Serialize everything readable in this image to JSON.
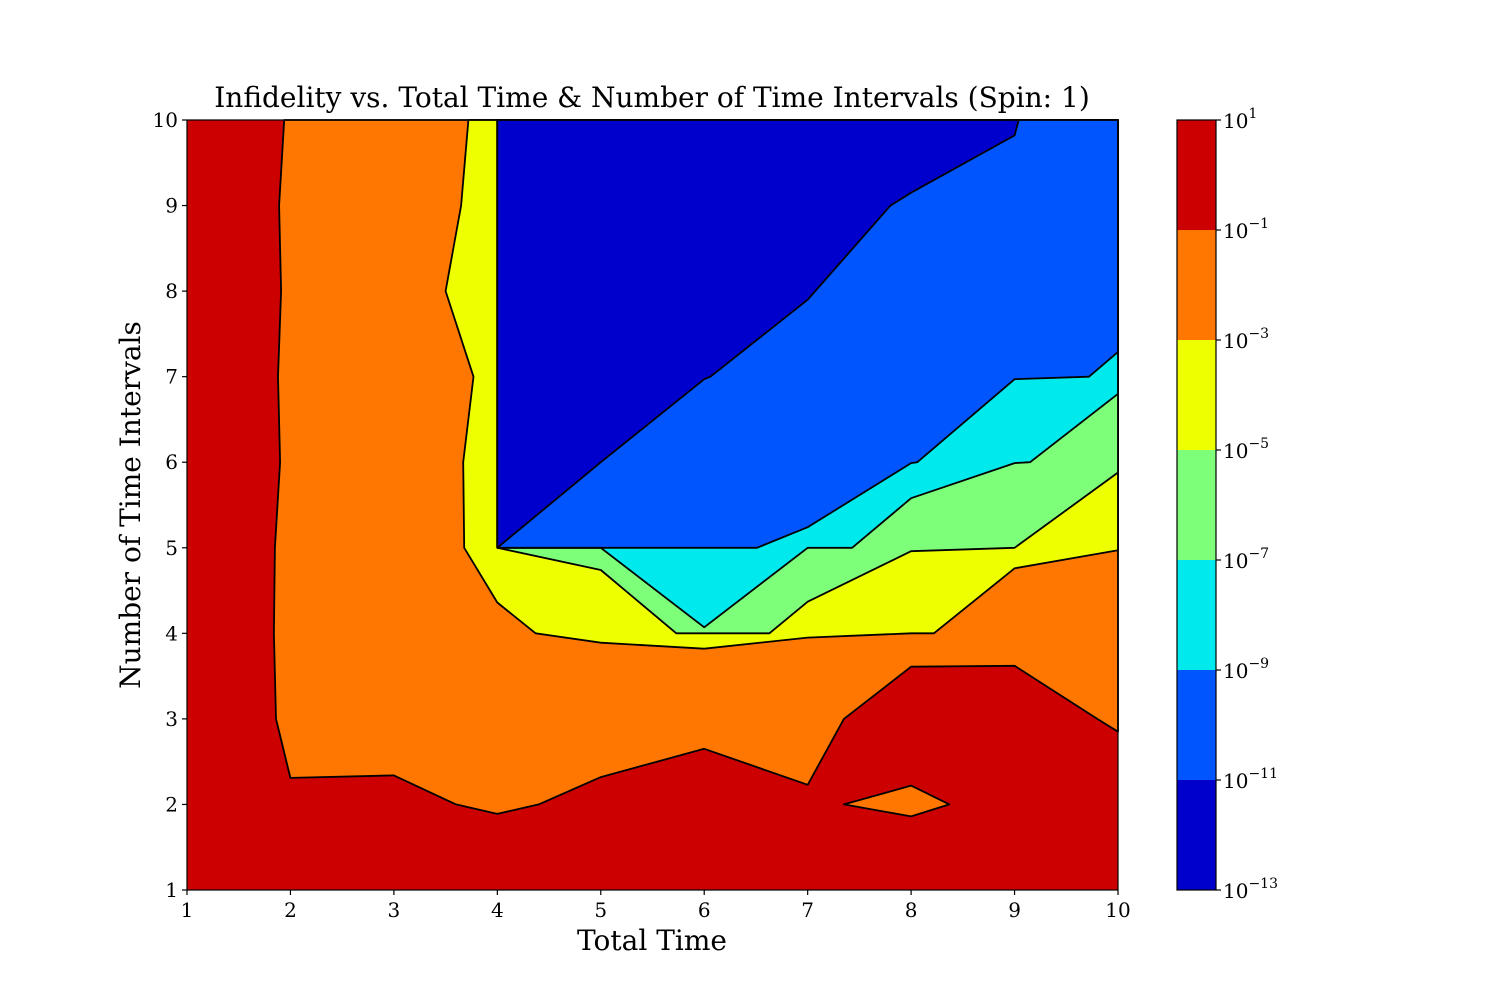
{
  "chart_data": {
    "type": "contourf",
    "title": "Infidelity vs. Total Time & Number of Time Intervals (Spin: 1)",
    "xlabel": "Total Time",
    "ylabel": "Number of Time Intervals",
    "xlim": [
      1,
      10
    ],
    "ylim": [
      1,
      10
    ],
    "x_ticks": [
      "1",
      "2",
      "3",
      "4",
      "5",
      "6",
      "7",
      "8",
      "9",
      "10"
    ],
    "y_ticks": [
      "1",
      "2",
      "3",
      "4",
      "5",
      "6",
      "7",
      "8",
      "9",
      "10"
    ],
    "z_scale": "log",
    "grid": false,
    "colorbar": {
      "location": "right",
      "levels": [
        {
          "lo": -13,
          "hi": -11,
          "color": "#0000cc"
        },
        {
          "lo": -11,
          "hi": -9,
          "color": "#0055ff"
        },
        {
          "lo": -9,
          "hi": -7,
          "color": "#00eaee"
        },
        {
          "lo": -7,
          "hi": -5,
          "color": "#7dff7a"
        },
        {
          "lo": -5,
          "hi": -3,
          "color": "#eeff00"
        },
        {
          "lo": -3,
          "hi": -1,
          "color": "#ff7700"
        },
        {
          "lo": -1,
          "hi": 1,
          "color": "#cc0000"
        }
      ],
      "tick_labels": [
        {
          "base": "10",
          "exp": "1"
        },
        {
          "base": "10",
          "exp": "−1"
        },
        {
          "base": "10",
          "exp": "−3"
        },
        {
          "base": "10",
          "exp": "−5"
        },
        {
          "base": "10",
          "exp": "−7"
        },
        {
          "base": "10",
          "exp": "−9"
        },
        {
          "base": "10",
          "exp": "−11"
        },
        {
          "base": "10",
          "exp": "−13"
        }
      ]
    },
    "regions": [
      {
        "level": "10^-1 to 10^1",
        "color": "#cc0000",
        "points": [
          [
            1,
            1
          ],
          [
            10,
            1
          ],
          [
            10,
            10
          ],
          [
            1,
            10
          ]
        ]
      },
      {
        "level": "10^-3 to 10^-1",
        "color": "#ff7700",
        "points": [
          [
            1.94,
            10
          ],
          [
            1.89,
            9
          ],
          [
            1.91,
            8
          ],
          [
            1.88,
            7
          ],
          [
            1.9,
            6
          ],
          [
            1.85,
            5
          ],
          [
            1.84,
            4
          ],
          [
            1.86,
            3
          ],
          [
            2,
            2.31
          ],
          [
            3,
            2.34
          ],
          [
            3.6,
            2
          ],
          [
            4,
            1.89
          ],
          [
            4.4,
            2
          ],
          [
            5,
            2.32
          ],
          [
            6,
            2.65
          ],
          [
            7,
            2.23
          ],
          [
            7.35,
            3
          ],
          [
            8,
            3.61
          ],
          [
            9,
            3.62
          ],
          [
            9.8,
            3
          ],
          [
            10,
            2.85
          ],
          [
            10,
            10
          ]
        ]
      },
      {
        "level": "10^-3 to 10^-1",
        "color": "#ff7700",
        "points": [
          [
            7.35,
            2
          ],
          [
            8,
            2.22
          ],
          [
            8.37,
            2
          ],
          [
            8,
            1.86
          ]
        ]
      },
      {
        "level": "10^-5 to 10^-3",
        "color": "#eeff00",
        "points": [
          [
            3.72,
            10
          ],
          [
            3.65,
            9
          ],
          [
            3.5,
            8
          ],
          [
            3.77,
            7
          ],
          [
            3.67,
            6
          ],
          [
            3.68,
            5
          ],
          [
            4,
            4.36
          ],
          [
            4.37,
            4
          ],
          [
            5,
            3.89
          ],
          [
            6,
            3.82
          ],
          [
            7,
            3.95
          ],
          [
            8,
            4
          ],
          [
            8.22,
            4
          ],
          [
            9,
            4.76
          ],
          [
            10,
            4.97
          ],
          [
            10,
            10
          ]
        ]
      },
      {
        "level": "10^-7 to 10^-5",
        "color": "#7dff7a",
        "points": [
          [
            4,
            5
          ],
          [
            5,
            4.74
          ],
          [
            5.73,
            4
          ],
          [
            6.63,
            4
          ],
          [
            7,
            4.37
          ],
          [
            8,
            4.96
          ],
          [
            9,
            5
          ],
          [
            10,
            5.88
          ],
          [
            10,
            10
          ],
          [
            4,
            10
          ]
        ]
      },
      {
        "level": "10^-9 to 10^-7",
        "color": "#00eaee",
        "points": [
          [
            4,
            5
          ],
          [
            5,
            5
          ],
          [
            6,
            4.07
          ],
          [
            7,
            5
          ],
          [
            7.43,
            5
          ],
          [
            8,
            5.58
          ],
          [
            9,
            5.99
          ],
          [
            9.15,
            6
          ],
          [
            10,
            6.8
          ],
          [
            10,
            10
          ],
          [
            4,
            10
          ]
        ]
      },
      {
        "level": "10^-11 to 10^-9",
        "color": "#0055ff",
        "points": [
          [
            4,
            5
          ],
          [
            6.51,
            5
          ],
          [
            7,
            5.24
          ],
          [
            8,
            5.99
          ],
          [
            8.06,
            6
          ],
          [
            9,
            6.97
          ],
          [
            9.72,
            7
          ],
          [
            10,
            7.29
          ],
          [
            10,
            10
          ],
          [
            4,
            10
          ]
        ]
      },
      {
        "level": "10^-13 to 10^-11",
        "color": "#0000cc",
        "points": [
          [
            4,
            10
          ],
          [
            4,
            5
          ],
          [
            5,
            6
          ],
          [
            6,
            6.97
          ],
          [
            6.06,
            7
          ],
          [
            7,
            7.9
          ],
          [
            7.8,
            9
          ],
          [
            8,
            9.15
          ],
          [
            9,
            9.82
          ],
          [
            9.04,
            10
          ]
        ]
      }
    ]
  }
}
